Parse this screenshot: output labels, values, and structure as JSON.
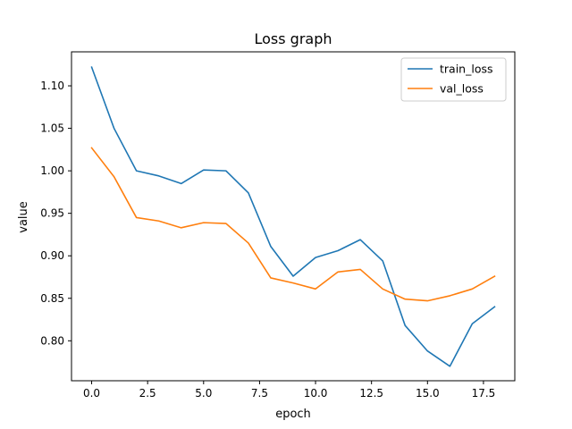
{
  "chart_data": {
    "type": "line",
    "title": "Loss graph",
    "xlabel": "epoch",
    "ylabel": "value",
    "xlim": [
      -0.9,
      18.9
    ],
    "ylim": [
      0.753,
      1.14
    ],
    "xticks": [
      0.0,
      2.5,
      5.0,
      7.5,
      10.0,
      12.5,
      15.0,
      17.5
    ],
    "xtick_labels": [
      "0.0",
      "2.5",
      "5.0",
      "7.5",
      "10.0",
      "12.5",
      "15.0",
      "17.5"
    ],
    "yticks": [
      0.8,
      0.85,
      0.9,
      0.95,
      1.0,
      1.05,
      1.1
    ],
    "ytick_labels": [
      "0.80",
      "0.85",
      "0.90",
      "0.95",
      "1.00",
      "1.05",
      "1.10"
    ],
    "grid": false,
    "legend_position": "top-right",
    "x": [
      0,
      1,
      2,
      3,
      4,
      5,
      6,
      7,
      8,
      9,
      10,
      11,
      12,
      13,
      14,
      15,
      16,
      17,
      18
    ],
    "series": [
      {
        "name": "train_loss",
        "color": "#1f77b4",
        "values": [
          1.122,
          1.05,
          1.0,
          0.994,
          0.985,
          1.001,
          1.0,
          0.974,
          0.911,
          0.876,
          0.898,
          0.906,
          0.919,
          0.894,
          0.818,
          0.788,
          0.77,
          0.82,
          0.84
        ]
      },
      {
        "name": "val_loss",
        "color": "#ff7f0e",
        "values": [
          1.027,
          0.993,
          0.945,
          0.941,
          0.933,
          0.939,
          0.938,
          0.915,
          0.874,
          0.868,
          0.861,
          0.881,
          0.884,
          0.861,
          0.849,
          0.847,
          0.853,
          0.861,
          0.876
        ]
      }
    ]
  }
}
